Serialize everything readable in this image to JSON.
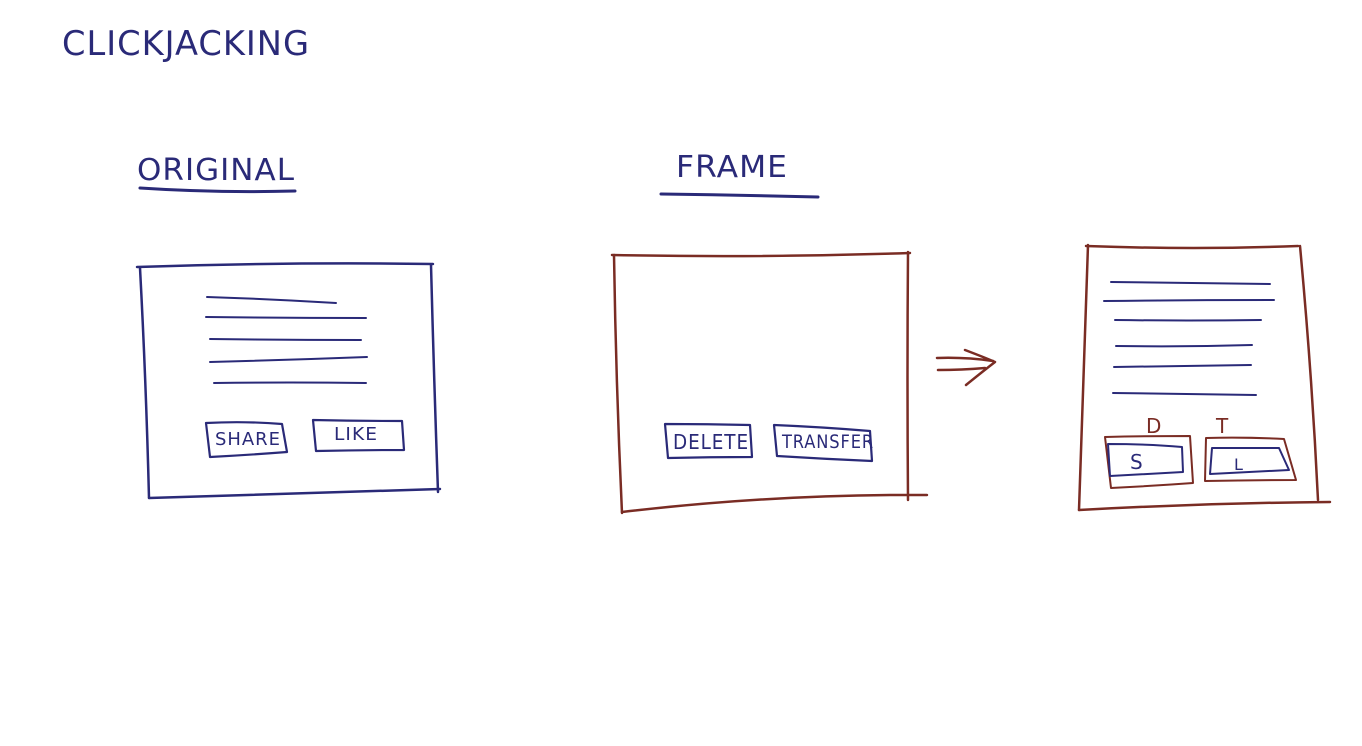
{
  "title": "CLICKJACKING",
  "sections": {
    "original": {
      "heading": "ORIGINAL",
      "buttons": [
        "SHARE",
        "LIKE"
      ]
    },
    "frame": {
      "heading": "FRAME",
      "buttons": [
        "DELETE",
        "TRANSFER"
      ]
    },
    "result": {
      "top_labels": [
        "D",
        "T"
      ],
      "button_labels": [
        "S",
        "L"
      ]
    }
  },
  "colors": {
    "ink_navy": "#2a2a78",
    "ink_brown": "#7a2c24",
    "background": "#ffffff"
  }
}
